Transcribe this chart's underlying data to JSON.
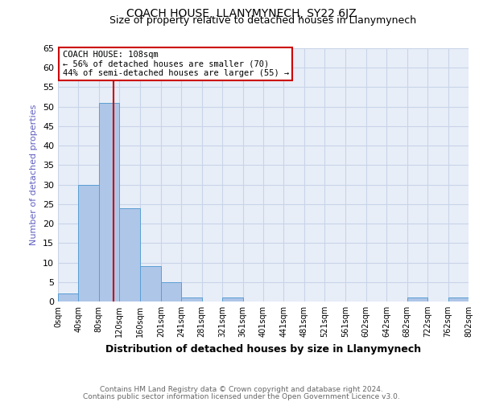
{
  "title": "COACH HOUSE, LLANYMYNECH, SY22 6JZ",
  "subtitle": "Size of property relative to detached houses in Llanymynech",
  "xlabel": "Distribution of detached houses by size in Llanymynech",
  "ylabel": "Number of detached properties",
  "footnote1": "Contains HM Land Registry data © Crown copyright and database right 2024.",
  "footnote2": "Contains public sector information licensed under the Open Government Licence v3.0.",
  "bin_edges": [
    0,
    40,
    80,
    120,
    160,
    201,
    241,
    281,
    321,
    361,
    401,
    441,
    481,
    521,
    561,
    602,
    642,
    682,
    722,
    762,
    802
  ],
  "bin_labels": [
    "0sqm",
    "40sqm",
    "80sqm",
    "120sqm",
    "160sqm",
    "201sqm",
    "241sqm",
    "281sqm",
    "321sqm",
    "361sqm",
    "401sqm",
    "441sqm",
    "481sqm",
    "521sqm",
    "561sqm",
    "602sqm",
    "642sqm",
    "682sqm",
    "722sqm",
    "762sqm",
    "802sqm"
  ],
  "counts": [
    2,
    30,
    51,
    24,
    9,
    5,
    1,
    0,
    1,
    0,
    0,
    0,
    0,
    0,
    0,
    0,
    0,
    1,
    0,
    1
  ],
  "bar_color": "#aec6e8",
  "bar_edge_color": "#5a9fd4",
  "grid_color": "#c8d4e8",
  "vline_x": 108,
  "vline_color": "#cc0000",
  "annotation_text": "COACH HOUSE: 108sqm\n← 56% of detached houses are smaller (70)\n44% of semi-detached houses are larger (55) →",
  "annotation_box_edge": "#cc0000",
  "ylim": [
    0,
    65
  ],
  "yticks": [
    0,
    5,
    10,
    15,
    20,
    25,
    30,
    35,
    40,
    45,
    50,
    55,
    60,
    65
  ],
  "background_color": "#ffffff",
  "plot_bg_color": "#e8eef8",
  "title_fontsize": 10,
  "subtitle_fontsize": 9,
  "ylabel_color": "#6060c0",
  "footnote_color": "#666666"
}
